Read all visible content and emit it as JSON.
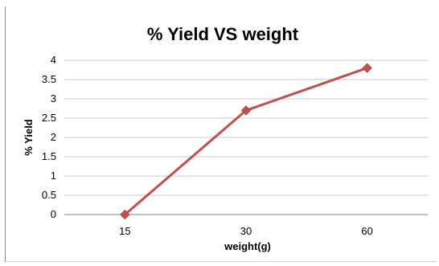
{
  "chart_data": {
    "type": "line",
    "title": "% Yield VS weight",
    "xlabel": "weight(g)",
    "ylabel": "% Yield",
    "categories": [
      "15",
      "30",
      "60"
    ],
    "series": [
      {
        "values": [
          0,
          2.7,
          3.8
        ],
        "color": "#c0504d",
        "marker": "diamond"
      }
    ],
    "ylim": [
      0,
      4
    ],
    "yticks": [
      "0",
      "0.5",
      "1",
      "1.5",
      "2",
      "2.5",
      "3",
      "3.5",
      "4"
    ],
    "grid": true,
    "legend": "none"
  }
}
